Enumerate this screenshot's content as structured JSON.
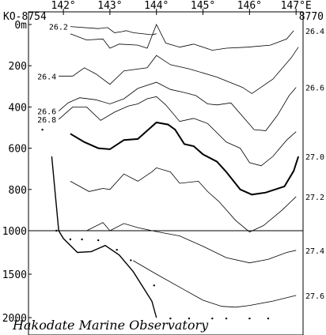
{
  "chart_data": {
    "type": "contour_section",
    "title": "",
    "station_labels": {
      "left": "KO-8754",
      "right": "8770"
    },
    "credit": "Hakodate Marine Observatory",
    "x_axis": {
      "ticks": [
        142,
        143,
        144,
        145,
        146,
        147
      ],
      "tick_labels": [
        "142°",
        "143°",
        "144°",
        "145°",
        "146°",
        "147°E"
      ],
      "range": [
        141.25,
        147.15
      ]
    },
    "y_axis": {
      "upper_segment": {
        "range": [
          0,
          1000
        ],
        "ticks": [
          0,
          200,
          400,
          600,
          800,
          1000
        ]
      },
      "lower_segment": {
        "range": [
          1000,
          2000
        ],
        "ticks": [
          1500,
          2000
        ]
      },
      "tick_labels": [
        "0m",
        "200",
        "400",
        "600",
        "800",
        "1000",
        "1500",
        "2000"
      ],
      "break_depth": 1000
    },
    "contour_label_values": [
      "26.2",
      "26.4",
      "26.6",
      "26.8",
      "27.0",
      "27.2",
      "27.4",
      "27.6"
    ],
    "contours": [
      {
        "value": 26.2,
        "emphasized": false,
        "label_left": "26.2",
        "label_right": "",
        "points": [
          [
            142.15,
            10
          ],
          [
            142.75,
            20
          ],
          [
            142.95,
            15
          ],
          [
            143.1,
            40
          ],
          [
            143.25,
            35
          ],
          [
            143.35,
            30
          ],
          [
            143.5,
            40
          ],
          [
            143.9,
            50
          ],
          [
            144.0,
            45
          ]
        ]
      },
      {
        "value": 26.4,
        "emphasized": false,
        "label_left": "",
        "label_right": "26.4",
        "points": [
          [
            142.15,
            45
          ],
          [
            142.5,
            75
          ],
          [
            142.85,
            70
          ],
          [
            143.0,
            115
          ],
          [
            143.2,
            95
          ],
          [
            143.6,
            100
          ],
          [
            143.8,
            115
          ],
          [
            144.0,
            0
          ],
          [
            144.2,
            90
          ],
          [
            144.5,
            110
          ],
          [
            144.8,
            95
          ],
          [
            145.2,
            125
          ],
          [
            145.5,
            115
          ],
          [
            145.95,
            110
          ],
          [
            146.45,
            100
          ],
          [
            146.8,
            70
          ],
          [
            146.95,
            30
          ]
        ]
      },
      {
        "value": 26.4,
        "emphasized": false,
        "label_left": "26.4",
        "label_right": "",
        "points": [
          [
            141.9,
            250
          ],
          [
            142.2,
            250
          ],
          [
            142.45,
            210
          ],
          [
            142.7,
            240
          ],
          [
            143.0,
            290
          ],
          [
            143.3,
            225
          ],
          [
            143.8,
            210
          ],
          [
            144.0,
            150
          ],
          [
            144.3,
            195
          ],
          [
            144.7,
            215
          ],
          [
            145.3,
            255
          ],
          [
            145.85,
            305
          ],
          [
            146.05,
            335
          ],
          [
            146.5,
            265
          ],
          [
            146.9,
            160
          ],
          [
            147.05,
            110
          ]
        ]
      },
      {
        "value": 26.6,
        "emphasized": false,
        "label_left": "26.6",
        "label_right": "26.6",
        "points": [
          [
            141.9,
            420
          ],
          [
            142.1,
            380
          ],
          [
            142.35,
            355
          ],
          [
            142.7,
            365
          ],
          [
            143.0,
            385
          ],
          [
            143.3,
            360
          ],
          [
            143.6,
            310
          ],
          [
            144.0,
            280
          ],
          [
            144.3,
            315
          ],
          [
            144.6,
            330
          ],
          [
            144.85,
            345
          ],
          [
            145.1,
            385
          ],
          [
            145.3,
            390
          ],
          [
            145.6,
            380
          ],
          [
            146.1,
            510
          ],
          [
            146.35,
            515
          ],
          [
            146.6,
            440
          ],
          [
            146.85,
            345
          ],
          [
            147.0,
            305
          ]
        ]
      },
      {
        "value": 26.8,
        "emphasized": false,
        "label_left": "26.8",
        "label_right": "",
        "points": [
          [
            141.9,
            460
          ],
          [
            142.2,
            400
          ],
          [
            142.5,
            400
          ],
          [
            142.8,
            465
          ],
          [
            143.1,
            425
          ],
          [
            143.4,
            395
          ],
          [
            143.6,
            385
          ],
          [
            143.8,
            360
          ],
          [
            144.0,
            350
          ],
          [
            144.2,
            390
          ],
          [
            144.5,
            470
          ],
          [
            144.8,
            455
          ],
          [
            145.1,
            480
          ],
          [
            145.5,
            570
          ],
          [
            145.8,
            600
          ],
          [
            146.0,
            670
          ],
          [
            146.25,
            685
          ],
          [
            146.5,
            640
          ],
          [
            146.8,
            560
          ],
          [
            147.0,
            520
          ]
        ]
      },
      {
        "value": 27.0,
        "emphasized": true,
        "label_left": "",
        "label_right": "27.0",
        "points": [
          [
            142.15,
            530
          ],
          [
            142.45,
            570
          ],
          [
            142.75,
            600
          ],
          [
            143.0,
            605
          ],
          [
            143.3,
            560
          ],
          [
            143.6,
            555
          ],
          [
            143.8,
            515
          ],
          [
            144.0,
            475
          ],
          [
            144.25,
            485
          ],
          [
            144.4,
            510
          ],
          [
            144.6,
            580
          ],
          [
            144.8,
            590
          ],
          [
            145.0,
            630
          ],
          [
            145.3,
            665
          ],
          [
            145.5,
            715
          ],
          [
            145.8,
            800
          ],
          [
            146.05,
            825
          ],
          [
            146.35,
            815
          ],
          [
            146.75,
            785
          ],
          [
            146.95,
            710
          ],
          [
            147.05,
            640
          ]
        ]
      },
      {
        "value": 27.2,
        "emphasized": false,
        "label_left": "",
        "label_right": "27.2",
        "points": [
          [
            142.15,
            760
          ],
          [
            142.55,
            810
          ],
          [
            142.85,
            795
          ],
          [
            143.0,
            800
          ],
          [
            143.3,
            725
          ],
          [
            143.6,
            760
          ],
          [
            143.9,
            715
          ],
          [
            144.0,
            695
          ],
          [
            144.3,
            715
          ],
          [
            144.5,
            770
          ],
          [
            144.9,
            760
          ],
          [
            145.1,
            810
          ],
          [
            145.35,
            860
          ],
          [
            145.7,
            950
          ],
          [
            146.0,
            1015
          ],
          [
            146.3,
            975
          ],
          [
            146.7,
            900
          ],
          [
            147.0,
            835
          ]
        ]
      },
      {
        "value": 27.4,
        "emphasized": false,
        "label_left": "",
        "label_right": "27.4",
        "points": [
          [
            142.5,
            1000
          ],
          [
            142.85,
            960
          ],
          [
            143.0,
            1000
          ],
          [
            143.3,
            965
          ],
          [
            143.6,
            985
          ],
          [
            144.0,
            1010
          ],
          [
            144.5,
            1060
          ],
          [
            145.0,
            1180
          ],
          [
            145.5,
            1310
          ],
          [
            146.0,
            1370
          ],
          [
            146.4,
            1330
          ],
          [
            146.8,
            1250
          ],
          [
            147.0,
            1225
          ]
        ]
      },
      {
        "value": 27.6,
        "emphasized": false,
        "label_left": "",
        "label_right": "27.6",
        "points": [
          [
            143.5,
            1345
          ],
          [
            144.0,
            1500
          ],
          [
            144.6,
            1680
          ],
          [
            145.0,
            1800
          ],
          [
            145.4,
            1870
          ],
          [
            145.7,
            1880
          ],
          [
            146.0,
            1860
          ],
          [
            146.5,
            1810
          ],
          [
            147.0,
            1745
          ]
        ]
      }
    ],
    "bottom_profile": [
      [
        141.75,
        640
      ],
      [
        141.9,
        1000
      ],
      [
        142.0,
        1090
      ],
      [
        142.3,
        1250
      ],
      [
        142.6,
        1240
      ],
      [
        142.9,
        1170
      ],
      [
        143.2,
        1280
      ],
      [
        143.5,
        1470
      ],
      [
        143.9,
        1810
      ],
      [
        144.0,
        2000
      ]
    ],
    "sample_points": [
      [
        141.55,
        510
      ],
      [
        141.85,
        1000
      ],
      [
        142.15,
        1100
      ],
      [
        142.4,
        1100
      ],
      [
        142.75,
        1110
      ],
      [
        143.15,
        1220
      ],
      [
        143.45,
        1340
      ],
      [
        143.95,
        1630
      ],
      [
        144.3,
        2010
      ],
      [
        144.7,
        2010
      ],
      [
        145.2,
        2010
      ],
      [
        145.5,
        2010
      ],
      [
        146.0,
        2010
      ],
      [
        146.4,
        2010
      ]
    ]
  }
}
